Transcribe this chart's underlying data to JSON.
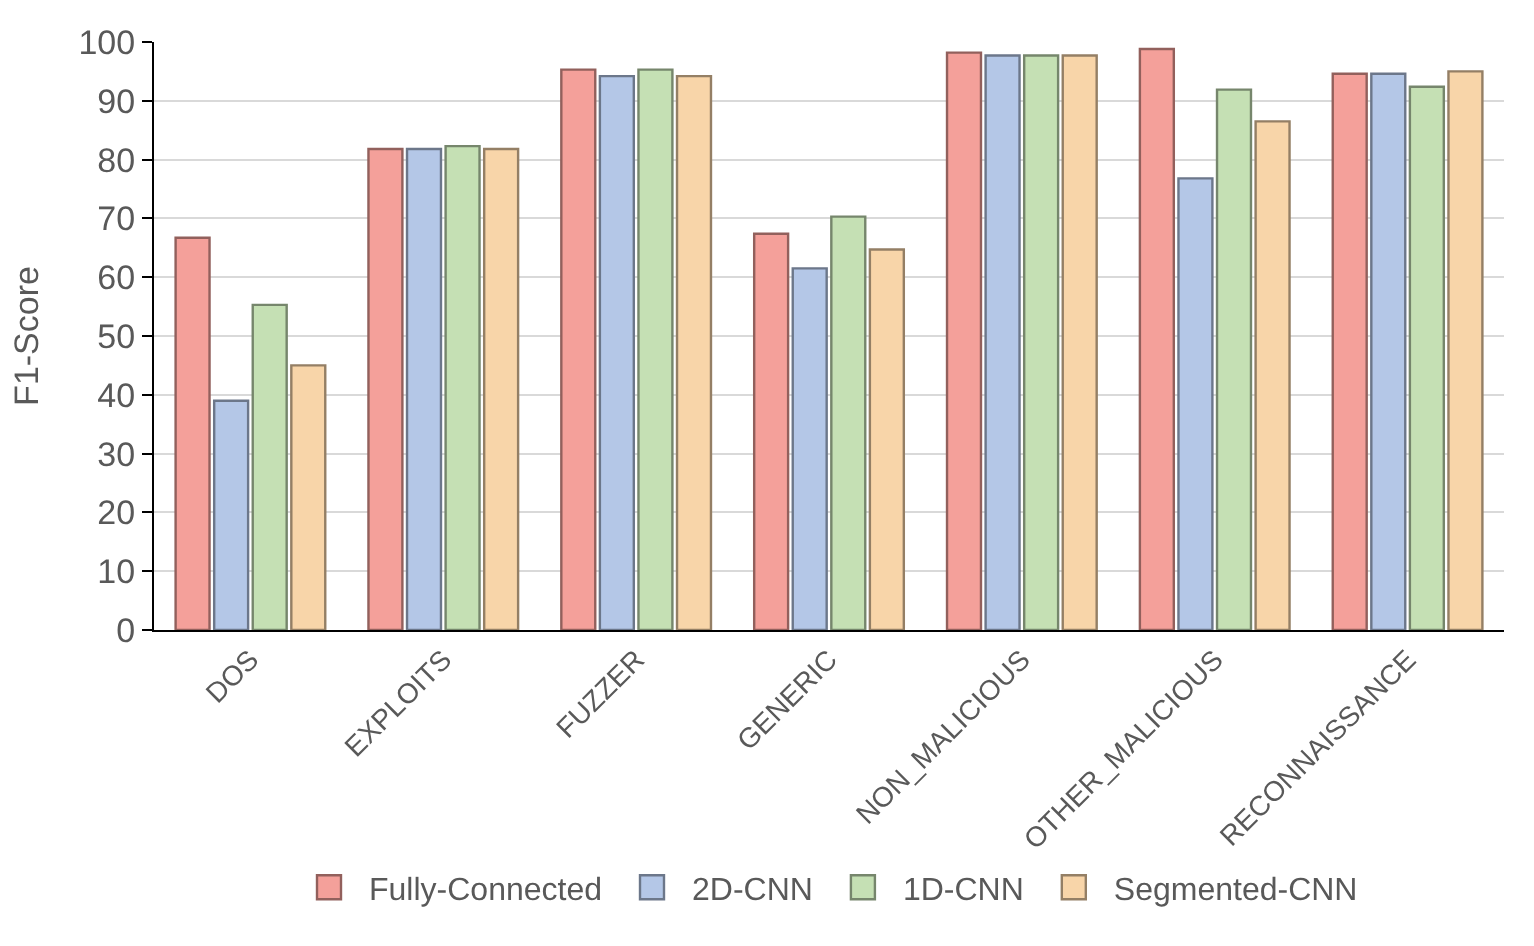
{
  "chart_data": {
    "type": "bar",
    "ylabel": "F1-Score",
    "categories": [
      "DOS",
      "EXPLOITS",
      "FUZZER",
      "GENERIC",
      "NON_MALICIOUS",
      "OTHER_MALICIOUS",
      "RECONNAISSANCE"
    ],
    "series": [
      {
        "name": "Fully-Connected",
        "color": "#f4a09a",
        "values": [
          66.7,
          81.8,
          95.3,
          67.4,
          98.2,
          98.8,
          94.6
        ]
      },
      {
        "name": "2D-CNN",
        "color": "#b4c7e7",
        "values": [
          39.0,
          81.8,
          94.2,
          61.5,
          97.7,
          76.8,
          94.6
        ]
      },
      {
        "name": "1D-CNN",
        "color": "#c5e0b4",
        "values": [
          55.3,
          82.3,
          95.3,
          70.3,
          97.7,
          91.9,
          92.4
        ]
      },
      {
        "name": "Segmented-CNN",
        "color": "#f8d5a9",
        "values": [
          45.0,
          81.8,
          94.2,
          64.7,
          97.7,
          86.5,
          95.0
        ]
      }
    ],
    "ylim": [
      0,
      100
    ],
    "yticks": [
      0,
      10,
      20,
      30,
      40,
      50,
      60,
      70,
      80,
      90,
      100
    ],
    "grid": "y",
    "legend": "bottom"
  }
}
